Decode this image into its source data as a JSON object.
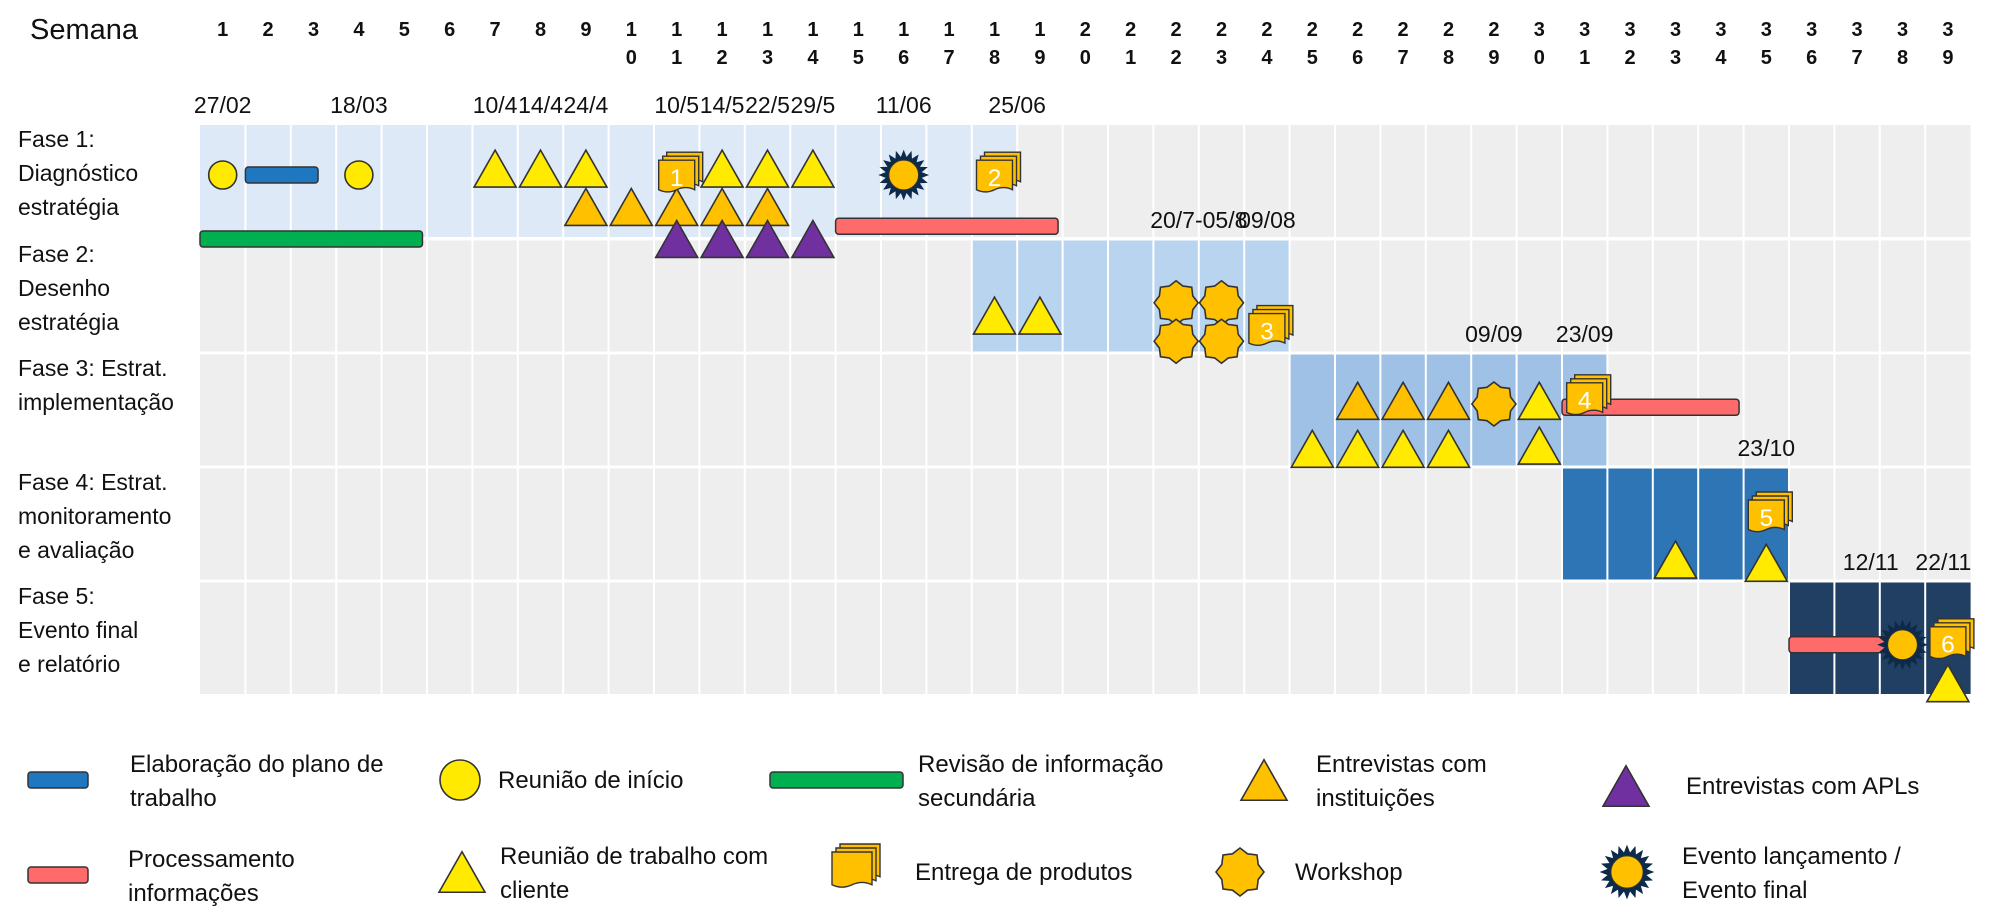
{
  "chart_data": {
    "type": "gantt",
    "week_header": "Semana",
    "weeks": [
      "1",
      "2",
      "3",
      "4",
      "5",
      "6",
      "7",
      "8",
      "9",
      "10",
      "11",
      "12",
      "13",
      "14",
      "15",
      "16",
      "17",
      "18",
      "19",
      "20",
      "21",
      "22",
      "23",
      "24",
      "25",
      "26",
      "27",
      "28",
      "29",
      "30",
      "31",
      "32",
      "33",
      "34",
      "35",
      "36",
      "37",
      "38",
      "39"
    ],
    "phases": [
      {
        "label_lines": [
          "Fase 1:",
          "Diagnóstico",
          "estratégia"
        ],
        "start_week": 1,
        "end_week": 18,
        "color": "#dde9f6"
      },
      {
        "label_lines": [
          "Fase 2:",
          "Desenho",
          "estratégia"
        ],
        "start_week": 18,
        "end_week": 24,
        "color": "#b9d4ee"
      },
      {
        "label_lines": [
          "Fase 3: Estrat.",
          "implementação"
        ],
        "start_week": 25,
        "end_week": 31,
        "color": "#9fc1e6"
      },
      {
        "label_lines": [
          "Fase 4: Estrat.",
          "monitoramento",
          "e avaliação"
        ],
        "start_week": 31,
        "end_week": 35,
        "color": "#2e75b6"
      },
      {
        "label_lines": [
          "Fase 5:",
          "Evento final",
          "e relatório"
        ],
        "start_week": 36,
        "end_week": 39,
        "color": "#203f63"
      }
    ],
    "bars": [
      {
        "phase": 1,
        "type": "plano",
        "start_week": 2,
        "end_week": 2.6,
        "slot": 1
      },
      {
        "phase": 1,
        "type": "revisao",
        "start_week": 1,
        "end_week": 4.9,
        "slot": 3
      },
      {
        "phase": 1,
        "type": "processamento",
        "start_week": 15,
        "end_week": 18.9,
        "slot": 2.6
      },
      {
        "phase": 3,
        "type": "processamento",
        "start_week": 31,
        "end_week": 33.9,
        "slot": 1.1
      },
      {
        "phase": 5,
        "type": "processamento",
        "start_week": 36,
        "end_week": 37.9,
        "slot": 1.4
      }
    ],
    "events": [
      {
        "phase": 1,
        "week": 1,
        "type": "inicio",
        "slot": 1
      },
      {
        "phase": 1,
        "week": 4,
        "type": "inicio",
        "slot": 1
      },
      {
        "phase": 1,
        "week": 7,
        "type": "reuniao",
        "slot": 0.8
      },
      {
        "phase": 1,
        "week": 8,
        "type": "reuniao",
        "slot": 0.8
      },
      {
        "phase": 1,
        "week": 9,
        "type": "reuniao",
        "slot": 0.8
      },
      {
        "phase": 1,
        "week": 12,
        "type": "reuniao",
        "slot": 0.8
      },
      {
        "phase": 1,
        "week": 13,
        "type": "reuniao",
        "slot": 0.8
      },
      {
        "phase": 1,
        "week": 14,
        "type": "reuniao",
        "slot": 0.8
      },
      {
        "phase": 1,
        "week": 9,
        "type": "instituicoes",
        "slot": 2
      },
      {
        "phase": 1,
        "week": 10,
        "type": "instituicoes",
        "slot": 2
      },
      {
        "phase": 1,
        "week": 11,
        "type": "instituicoes",
        "slot": 2
      },
      {
        "phase": 1,
        "week": 12,
        "type": "instituicoes",
        "slot": 2
      },
      {
        "phase": 1,
        "week": 13,
        "type": "instituicoes",
        "slot": 2
      },
      {
        "phase": 1,
        "week": 11,
        "type": "apls",
        "slot": 3
      },
      {
        "phase": 1,
        "week": 12,
        "type": "apls",
        "slot": 3
      },
      {
        "phase": 1,
        "week": 13,
        "type": "apls",
        "slot": 3
      },
      {
        "phase": 1,
        "week": 14,
        "type": "apls",
        "slot": 3
      },
      {
        "phase": 1,
        "week": 11,
        "type": "entrega",
        "number": "1",
        "slot": 1.1
      },
      {
        "phase": 1,
        "week": 16,
        "type": "lancamento",
        "slot": 1
      },
      {
        "phase": 1,
        "week": 18,
        "type": "entrega",
        "number": "2",
        "slot": 1.1
      },
      {
        "phase": 2,
        "week": 18,
        "type": "reuniao",
        "slot": 1.8
      },
      {
        "phase": 2,
        "week": 19,
        "type": "reuniao",
        "slot": 1.8
      },
      {
        "phase": 2,
        "week": 22,
        "type": "workshop",
        "slot": 1.4
      },
      {
        "phase": 2,
        "week": 23,
        "type": "workshop",
        "slot": 1.4
      },
      {
        "phase": 2,
        "week": 22,
        "type": "workshop",
        "slot": 2.6
      },
      {
        "phase": 2,
        "week": 23,
        "type": "workshop",
        "slot": 2.6
      },
      {
        "phase": 2,
        "week": 24,
        "type": "entrega",
        "number": "3",
        "slot": 2.3
      },
      {
        "phase": 3,
        "week": 26,
        "type": "instituicoes",
        "slot": 0.9
      },
      {
        "phase": 3,
        "week": 27,
        "type": "instituicoes",
        "slot": 0.9
      },
      {
        "phase": 3,
        "week": 28,
        "type": "instituicoes",
        "slot": 0.9
      },
      {
        "phase": 3,
        "week": 29,
        "type": "workshop",
        "slot": 1
      },
      {
        "phase": 3,
        "week": 30,
        "type": "reuniao",
        "slot": 0.9
      },
      {
        "phase": 3,
        "week": 31,
        "type": "entrega",
        "number": "4",
        "slot": 0.9
      },
      {
        "phase": 3,
        "week": 25,
        "type": "reuniao",
        "slot": 2.4
      },
      {
        "phase": 3,
        "week": 26,
        "type": "reuniao",
        "slot": 2.4
      },
      {
        "phase": 3,
        "week": 27,
        "type": "reuniao",
        "slot": 2.4
      },
      {
        "phase": 3,
        "week": 28,
        "type": "reuniao",
        "slot": 2.4
      },
      {
        "phase": 3,
        "week": 30,
        "type": "reuniao",
        "slot": 2.3
      },
      {
        "phase": 4,
        "week": 35,
        "type": "entrega",
        "number": "5",
        "slot": 1
      },
      {
        "phase": 4,
        "week": 33,
        "type": "reuniao",
        "slot": 2.3
      },
      {
        "phase": 4,
        "week": 35,
        "type": "reuniao",
        "slot": 2.4
      },
      {
        "phase": 5,
        "week": 38,
        "type": "lancamento",
        "slot": 1.4
      },
      {
        "phase": 5,
        "week": 39,
        "type": "entrega",
        "number": "6",
        "slot": 1.4
      },
      {
        "phase": 5,
        "week": 39,
        "type": "reuniao",
        "slot": 2.6
      }
    ],
    "date_labels": [
      {
        "phase": 1,
        "week": 1,
        "text": "27/02"
      },
      {
        "phase": 1,
        "week": 4,
        "text": "18/03"
      },
      {
        "phase": 1,
        "week": 7,
        "text": "10/4"
      },
      {
        "phase": 1,
        "week": 8,
        "text": "14/4"
      },
      {
        "phase": 1,
        "week": 9,
        "text": "24/4"
      },
      {
        "phase": 1,
        "week": 11,
        "text": "10/5"
      },
      {
        "phase": 1,
        "week": 12,
        "text": "14/5"
      },
      {
        "phase": 1,
        "week": 13,
        "text": "22/5"
      },
      {
        "phase": 1,
        "week": 14,
        "text": "29/5"
      },
      {
        "phase": 1,
        "week": 16,
        "text": "11/06"
      },
      {
        "phase": 1,
        "week": 18.5,
        "text": "25/06"
      },
      {
        "phase": 2,
        "week": 22.5,
        "text": "20/7-05/8"
      },
      {
        "phase": 2,
        "week": 24,
        "text": "09/08"
      },
      {
        "phase": 3,
        "week": 29,
        "text": "09/09"
      },
      {
        "phase": 3,
        "week": 31,
        "text": "23/09"
      },
      {
        "phase": 4,
        "week": 35,
        "text": "23/10"
      },
      {
        "phase": 5,
        "week": 37.3,
        "text": "12/11"
      },
      {
        "phase": 5,
        "week": 38.9,
        "text": "22/11"
      }
    ]
  },
  "legend": {
    "plano": [
      "Elaboração do plano de",
      "trabalho"
    ],
    "inicio": [
      "Reunião de início"
    ],
    "revisao": [
      "Revisão de informação",
      "secundária"
    ],
    "instituicoes": [
      "Entrevistas com",
      "instituições"
    ],
    "apls": [
      "Entrevistas com APLs"
    ],
    "processamento": [
      "Processamento",
      "informações"
    ],
    "reuniao": [
      "Reunião de trabalho com",
      "cliente"
    ],
    "entrega": [
      "Entrega de produtos"
    ],
    "workshop": [
      "Workshop"
    ],
    "lancamento": [
      "Evento lançamento /",
      "Evento final"
    ]
  },
  "colors": {
    "grid_bg": "#eeeeee",
    "yellow": "#ffea00",
    "orange": "#ffc000",
    "purple": "#7030a0",
    "plano_bar": "#1f77c0",
    "revisao_bar": "#00b050",
    "processamento_bar": "#ff6b6b",
    "dark_blue": "#0d2a4a"
  }
}
